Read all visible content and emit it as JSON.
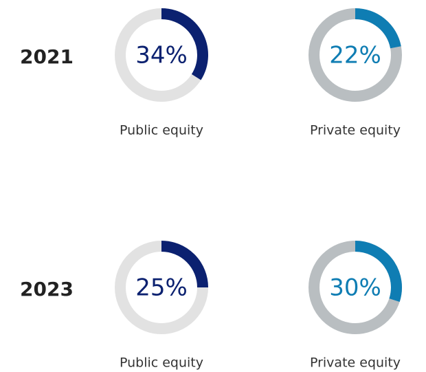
{
  "chart_data": [
    {
      "type": "donut",
      "title": "2021",
      "categories": [
        "Public equity",
        "Private equity"
      ],
      "values": [
        34,
        22
      ],
      "value_labels": [
        "34%",
        "22%"
      ],
      "colors": [
        "#0b2170",
        "#0f7db3"
      ],
      "track_colors": [
        "#e2e2e2",
        "#b9bec1"
      ]
    },
    {
      "type": "donut",
      "title": "2023",
      "categories": [
        "Public equity",
        "Private equity"
      ],
      "values": [
        25,
        30
      ],
      "value_labels": [
        "25%",
        "30%"
      ],
      "colors": [
        "#0b2170",
        "#0f7db3"
      ],
      "track_colors": [
        "#e2e2e2",
        "#b9bec1"
      ]
    }
  ]
}
